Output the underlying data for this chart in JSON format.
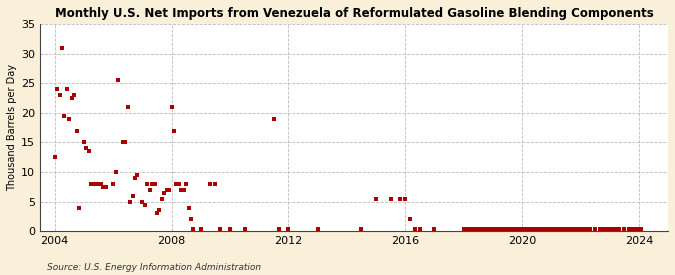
{
  "title": "Monthly U.S. Net Imports from Venezuela of Reformulated Gasoline Blending Components",
  "ylabel": "Thousand Barrels per Day",
  "source": "Source: U.S. Energy Information Administration",
  "background_color": "#faefd8",
  "plot_background": "#ffffff",
  "marker_color": "#aa0000",
  "marker_size": 5,
  "ylim": [
    0,
    35
  ],
  "yticks": [
    0,
    5,
    10,
    15,
    20,
    25,
    30,
    35
  ],
  "xticks": [
    2004,
    2008,
    2012,
    2016,
    2020,
    2024
  ],
  "xlim": [
    2003.5,
    2025.0
  ],
  "data_points": [
    [
      2004.0,
      12.5
    ],
    [
      2004.083,
      24.0
    ],
    [
      2004.167,
      23.0
    ],
    [
      2004.25,
      31.0
    ],
    [
      2004.333,
      19.5
    ],
    [
      2004.417,
      24.0
    ],
    [
      2004.5,
      19.0
    ],
    [
      2004.583,
      22.5
    ],
    [
      2004.667,
      23.0
    ],
    [
      2004.75,
      17.0
    ],
    [
      2004.833,
      4.0
    ],
    [
      2005.0,
      15.0
    ],
    [
      2005.083,
      14.0
    ],
    [
      2005.167,
      13.5
    ],
    [
      2005.25,
      8.0
    ],
    [
      2005.333,
      8.0
    ],
    [
      2005.417,
      8.0
    ],
    [
      2005.5,
      8.0
    ],
    [
      2005.583,
      8.0
    ],
    [
      2005.667,
      7.5
    ],
    [
      2005.75,
      7.5
    ],
    [
      2006.0,
      8.0
    ],
    [
      2006.083,
      10.0
    ],
    [
      2006.167,
      25.5
    ],
    [
      2006.333,
      15.0
    ],
    [
      2006.417,
      15.0
    ],
    [
      2006.5,
      21.0
    ],
    [
      2006.583,
      5.0
    ],
    [
      2006.667,
      6.0
    ],
    [
      2006.75,
      9.0
    ],
    [
      2006.833,
      9.5
    ],
    [
      2007.0,
      5.0
    ],
    [
      2007.083,
      4.5
    ],
    [
      2007.167,
      8.0
    ],
    [
      2007.25,
      7.0
    ],
    [
      2007.333,
      8.0
    ],
    [
      2007.417,
      8.0
    ],
    [
      2007.5,
      3.0
    ],
    [
      2007.583,
      3.5
    ],
    [
      2007.667,
      5.5
    ],
    [
      2007.75,
      6.5
    ],
    [
      2007.833,
      7.0
    ],
    [
      2007.917,
      7.0
    ],
    [
      2008.0,
      21.0
    ],
    [
      2008.083,
      17.0
    ],
    [
      2008.167,
      8.0
    ],
    [
      2008.25,
      8.0
    ],
    [
      2008.333,
      7.0
    ],
    [
      2008.417,
      7.0
    ],
    [
      2008.5,
      8.0
    ],
    [
      2008.583,
      4.0
    ],
    [
      2008.667,
      2.0
    ],
    [
      2008.75,
      0.3
    ],
    [
      2009.0,
      0.3
    ],
    [
      2009.333,
      8.0
    ],
    [
      2009.5,
      8.0
    ],
    [
      2009.667,
      0.3
    ],
    [
      2010.0,
      0.3
    ],
    [
      2010.5,
      0.3
    ],
    [
      2011.5,
      19.0
    ],
    [
      2011.667,
      0.3
    ],
    [
      2012.0,
      0.3
    ],
    [
      2013.0,
      0.3
    ],
    [
      2014.5,
      0.3
    ],
    [
      2015.0,
      5.5
    ],
    [
      2015.5,
      5.5
    ],
    [
      2015.833,
      5.5
    ],
    [
      2016.0,
      5.5
    ],
    [
      2016.167,
      2.0
    ],
    [
      2016.333,
      0.3
    ],
    [
      2016.5,
      0.3
    ],
    [
      2017.0,
      0.3
    ],
    [
      2018.0,
      0.3
    ],
    [
      2018.083,
      0.3
    ],
    [
      2018.167,
      0.3
    ],
    [
      2018.25,
      0.3
    ],
    [
      2018.333,
      0.3
    ],
    [
      2018.417,
      0.3
    ],
    [
      2018.5,
      0.3
    ],
    [
      2018.583,
      0.3
    ],
    [
      2018.667,
      0.3
    ],
    [
      2018.75,
      0.3
    ],
    [
      2018.833,
      0.3
    ],
    [
      2018.917,
      0.3
    ],
    [
      2019.0,
      0.3
    ],
    [
      2019.083,
      0.3
    ],
    [
      2019.167,
      0.3
    ],
    [
      2019.25,
      0.3
    ],
    [
      2019.333,
      0.3
    ],
    [
      2019.417,
      0.3
    ],
    [
      2019.5,
      0.3
    ],
    [
      2019.583,
      0.3
    ],
    [
      2019.667,
      0.3
    ],
    [
      2019.75,
      0.3
    ],
    [
      2019.833,
      0.3
    ],
    [
      2019.917,
      0.3
    ],
    [
      2020.0,
      0.3
    ],
    [
      2020.083,
      0.3
    ],
    [
      2020.167,
      0.3
    ],
    [
      2020.25,
      0.3
    ],
    [
      2020.333,
      0.3
    ],
    [
      2020.417,
      0.3
    ],
    [
      2020.5,
      0.3
    ],
    [
      2020.583,
      0.3
    ],
    [
      2020.667,
      0.3
    ],
    [
      2020.75,
      0.3
    ],
    [
      2020.833,
      0.3
    ],
    [
      2020.917,
      0.3
    ],
    [
      2021.0,
      0.3
    ],
    [
      2021.083,
      0.3
    ],
    [
      2021.167,
      0.3
    ],
    [
      2021.25,
      0.3
    ],
    [
      2021.333,
      0.3
    ],
    [
      2021.417,
      0.3
    ],
    [
      2021.5,
      0.3
    ],
    [
      2021.583,
      0.3
    ],
    [
      2021.667,
      0.3
    ],
    [
      2021.75,
      0.3
    ],
    [
      2021.833,
      0.3
    ],
    [
      2021.917,
      0.3
    ],
    [
      2022.0,
      0.3
    ],
    [
      2022.083,
      0.3
    ],
    [
      2022.167,
      0.3
    ],
    [
      2022.25,
      0.3
    ],
    [
      2022.333,
      0.3
    ],
    [
      2022.5,
      0.3
    ],
    [
      2022.667,
      0.3
    ],
    [
      2022.75,
      0.3
    ],
    [
      2022.833,
      0.3
    ],
    [
      2022.917,
      0.3
    ],
    [
      2023.0,
      0.3
    ],
    [
      2023.083,
      0.3
    ],
    [
      2023.167,
      0.3
    ],
    [
      2023.333,
      0.3
    ],
    [
      2023.5,
      0.3
    ],
    [
      2023.667,
      0.3
    ],
    [
      2023.75,
      0.3
    ],
    [
      2023.917,
      0.3
    ],
    [
      2024.0,
      0.3
    ],
    [
      2024.083,
      0.3
    ]
  ]
}
